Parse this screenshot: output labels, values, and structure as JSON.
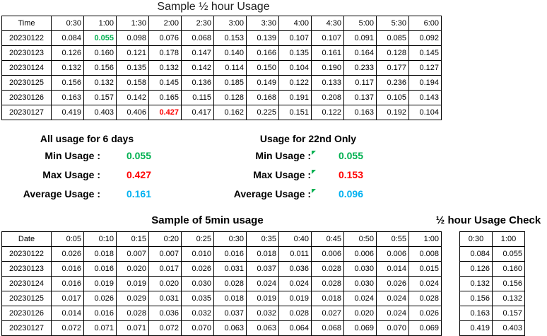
{
  "colors": {
    "green": "#00B050",
    "red": "#FF0000",
    "blue": "#00B0F0"
  },
  "titles": {
    "main": "Sample ½ hour Usage",
    "five_min": "Sample of 5min usage",
    "check": "½ hour Usage Check"
  },
  "half_hour_table": {
    "row_header": true,
    "header": [
      "Time",
      "0:30",
      "1:00",
      "1:30",
      "2:00",
      "2:30",
      "3:00",
      "3:30",
      "4:00",
      "4:30",
      "5:00",
      "5:30",
      "6:00"
    ],
    "rows": [
      [
        "20230122",
        "0.084",
        "0.055",
        "0.098",
        "0.076",
        "0.068",
        "0.153",
        "0.139",
        "0.107",
        "0.107",
        "0.091",
        "0.085",
        "0.092"
      ],
      [
        "20230123",
        "0.126",
        "0.160",
        "0.121",
        "0.178",
        "0.147",
        "0.140",
        "0.166",
        "0.135",
        "0.161",
        "0.164",
        "0.128",
        "0.145"
      ],
      [
        "20230124",
        "0.132",
        "0.156",
        "0.135",
        "0.132",
        "0.142",
        "0.114",
        "0.150",
        "0.104",
        "0.190",
        "0.233",
        "0.177",
        "0.127"
      ],
      [
        "20230125",
        "0.156",
        "0.132",
        "0.158",
        "0.145",
        "0.136",
        "0.185",
        "0.149",
        "0.122",
        "0.133",
        "0.117",
        "0.236",
        "0.194"
      ],
      [
        "20230126",
        "0.163",
        "0.157",
        "0.142",
        "0.165",
        "0.115",
        "0.128",
        "0.168",
        "0.191",
        "0.208",
        "0.137",
        "0.105",
        "0.143"
      ],
      [
        "20230127",
        "0.419",
        "0.403",
        "0.406",
        "0.427",
        "0.417",
        "0.162",
        "0.225",
        "0.151",
        "0.122",
        "0.163",
        "0.192",
        "0.104"
      ]
    ],
    "highlights": [
      {
        "row": 0,
        "col": 2,
        "color": "green",
        "meaning": "minimum value"
      },
      {
        "row": 5,
        "col": 4,
        "color": "red",
        "meaning": "maximum value"
      }
    ]
  },
  "summary_all": {
    "title": "All usage for 6 days",
    "rows": [
      {
        "label": "Min Usage :",
        "value": "0.055"
      },
      {
        "label": "Max Usage :",
        "value": "0.427"
      },
      {
        "label": "Average Usage :",
        "value": "0.161"
      }
    ]
  },
  "summary_22nd": {
    "title": "Usage for 22nd Only",
    "rows": [
      {
        "label": "Min Usage :",
        "value": "0.055"
      },
      {
        "label": "Max Usage :",
        "value": "0.153"
      },
      {
        "label": "Average Usage :",
        "value": "0.096"
      }
    ]
  },
  "five_min_table": {
    "row_header": true,
    "header": [
      "Date",
      "0:05",
      "0:10",
      "0:15",
      "0:20",
      "0:25",
      "0:30",
      "0:35",
      "0:40",
      "0:45",
      "0:50",
      "0:55",
      "1:00"
    ],
    "rows": [
      [
        "20230122",
        "0.026",
        "0.018",
        "0.007",
        "0.007",
        "0.010",
        "0.016",
        "0.018",
        "0.011",
        "0.006",
        "0.006",
        "0.006",
        "0.008"
      ],
      [
        "20230123",
        "0.016",
        "0.016",
        "0.020",
        "0.017",
        "0.026",
        "0.031",
        "0.037",
        "0.036",
        "0.028",
        "0.030",
        "0.014",
        "0.015"
      ],
      [
        "20230124",
        "0.016",
        "0.019",
        "0.019",
        "0.020",
        "0.030",
        "0.028",
        "0.024",
        "0.024",
        "0.028",
        "0.030",
        "0.026",
        "0.024"
      ],
      [
        "20230125",
        "0.017",
        "0.026",
        "0.029",
        "0.031",
        "0.035",
        "0.018",
        "0.019",
        "0.019",
        "0.018",
        "0.024",
        "0.024",
        "0.028"
      ],
      [
        "20230126",
        "0.014",
        "0.016",
        "0.028",
        "0.036",
        "0.032",
        "0.037",
        "0.032",
        "0.028",
        "0.027",
        "0.020",
        "0.024",
        "0.026"
      ],
      [
        "20230127",
        "0.072",
        "0.071",
        "0.071",
        "0.072",
        "0.070",
        "0.063",
        "0.063",
        "0.064",
        "0.068",
        "0.069",
        "0.070",
        "0.069"
      ]
    ],
    "highlights": []
  },
  "check_table": {
    "row_header": false,
    "header": [
      "0:30",
      "1:00"
    ],
    "rows": [
      [
        "0.084",
        "0.055"
      ],
      [
        "0.126",
        "0.160"
      ],
      [
        "0.132",
        "0.156"
      ],
      [
        "0.156",
        "0.132"
      ],
      [
        "0.163",
        "0.157"
      ],
      [
        "0.419",
        "0.403"
      ]
    ],
    "highlights": []
  }
}
